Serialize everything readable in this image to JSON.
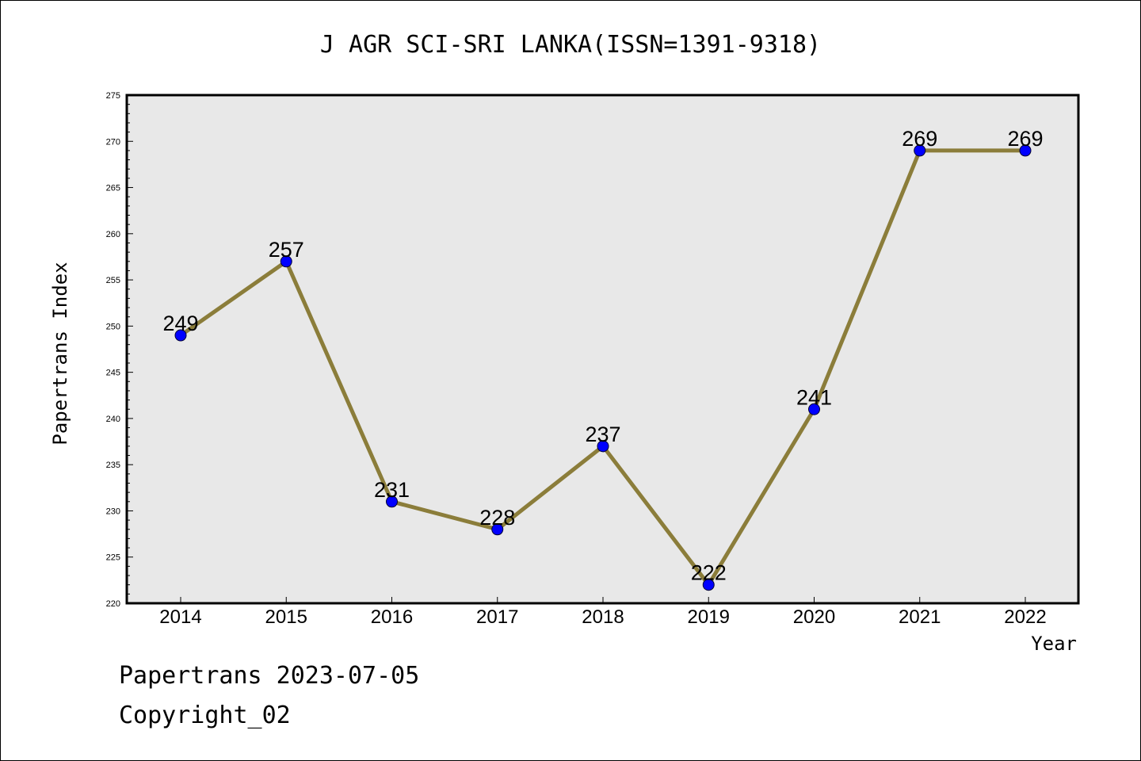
{
  "chart_data": {
    "type": "line",
    "title": "J AGR SCI-SRI LANKA(ISSN=1391-9318)",
    "xlabel": "Year",
    "ylabel": "Papertrans Index",
    "categories": [
      "2014",
      "2015",
      "2016",
      "2017",
      "2018",
      "2019",
      "2020",
      "2021",
      "2022"
    ],
    "values": [
      249,
      257,
      231,
      228,
      237,
      222,
      241,
      269,
      269
    ],
    "ylim": [
      220,
      275
    ],
    "yticks": [
      220,
      225,
      230,
      235,
      240,
      245,
      250,
      255,
      260,
      265,
      270,
      275
    ],
    "grid": false,
    "legend": "none",
    "colors": {
      "line": "#8b7d3a",
      "marker": "#0000ff",
      "plot_background": "#e8e8e8"
    }
  },
  "footer": {
    "line1": "Papertrans 2023-07-05",
    "line2": "Copyright_02"
  }
}
